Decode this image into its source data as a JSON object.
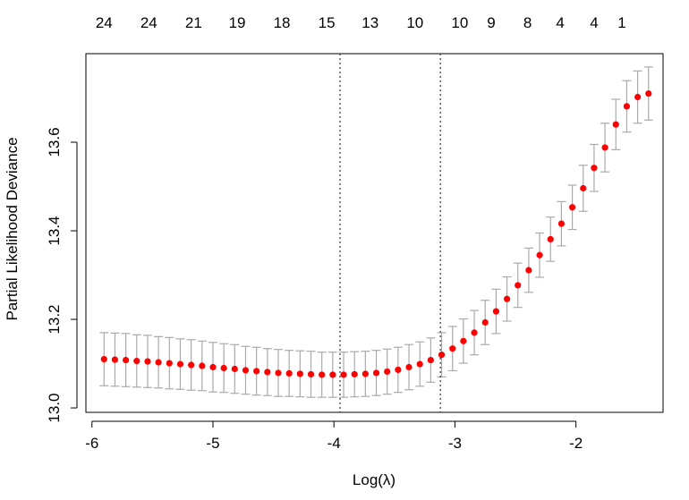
{
  "chart_data": {
    "type": "scatter",
    "title": "",
    "xlabel": "Log(λ)",
    "ylabel": "Partial Likelihood Deviance",
    "xlim": [
      -6.05,
      -1.28
    ],
    "ylim": [
      12.99,
      13.8
    ],
    "xticks": [
      -6,
      -5,
      -4,
      -3,
      -2
    ],
    "yticks": [
      13.0,
      13.2,
      13.4,
      13.6
    ],
    "grid": false,
    "legend": "none",
    "top_axis": {
      "ticks": [
        -5.9,
        -5.53,
        -5.16,
        -4.8,
        -4.43,
        -4.06,
        -3.7,
        -3.33,
        -2.96,
        -2.7,
        -2.4,
        -2.13,
        -1.85,
        -1.62
      ],
      "labels": [
        "24",
        "24",
        "21",
        "19",
        "18",
        "15",
        "13",
        "10",
        "10",
        "9",
        "8",
        "4",
        "4",
        "1"
      ]
    },
    "reference_lines": [
      -3.95,
      -3.12
    ],
    "x": [
      -5.9,
      -5.81,
      -5.72,
      -5.63,
      -5.54,
      -5.45,
      -5.36,
      -5.27,
      -5.18,
      -5.09,
      -5.0,
      -4.91,
      -4.82,
      -4.73,
      -4.64,
      -4.55,
      -4.46,
      -4.37,
      -4.28,
      -4.19,
      -4.1,
      -4.01,
      -3.92,
      -3.83,
      -3.74,
      -3.65,
      -3.56,
      -3.47,
      -3.38,
      -3.29,
      -3.2,
      -3.11,
      -3.02,
      -2.93,
      -2.84,
      -2.75,
      -2.66,
      -2.57,
      -2.48,
      -2.39,
      -2.3,
      -2.21,
      -2.12,
      -2.03,
      -1.94,
      -1.85,
      -1.76,
      -1.67,
      -1.58,
      -1.49,
      -1.4
    ],
    "y": [
      13.11,
      13.109,
      13.108,
      13.106,
      13.105,
      13.103,
      13.101,
      13.099,
      13.097,
      13.095,
      13.092,
      13.09,
      13.088,
      13.085,
      13.083,
      13.081,
      13.079,
      13.078,
      13.077,
      13.076,
      13.075,
      13.075,
      13.075,
      13.076,
      13.077,
      13.079,
      13.082,
      13.086,
      13.092,
      13.099,
      13.108,
      13.12,
      13.134,
      13.151,
      13.17,
      13.193,
      13.218,
      13.246,
      13.277,
      13.311,
      13.345,
      13.381,
      13.416,
      13.453,
      13.496,
      13.542,
      13.588,
      13.64,
      13.681,
      13.702,
      13.71
    ],
    "error": [
      0.06,
      0.06,
      0.06,
      0.059,
      0.059,
      0.058,
      0.058,
      0.057,
      0.057,
      0.056,
      0.056,
      0.055,
      0.055,
      0.054,
      0.054,
      0.053,
      0.053,
      0.052,
      0.052,
      0.052,
      0.051,
      0.051,
      0.051,
      0.051,
      0.051,
      0.051,
      0.051,
      0.051,
      0.051,
      0.05,
      0.05,
      0.05,
      0.05,
      0.05,
      0.05,
      0.05,
      0.05,
      0.05,
      0.05,
      0.05,
      0.05,
      0.05,
      0.05,
      0.05,
      0.052,
      0.053,
      0.055,
      0.057,
      0.058,
      0.059,
      0.06
    ],
    "colors": {
      "point": "#ff0000",
      "errorbar": "#aaaaaa",
      "axis": "#000000",
      "reference_line": "#333333"
    }
  }
}
